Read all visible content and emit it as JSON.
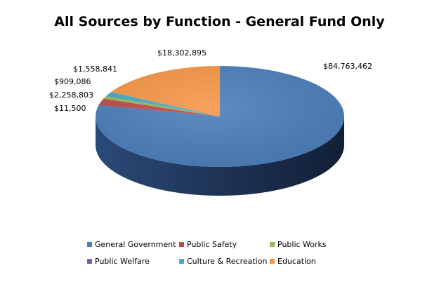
{
  "chart_data": {
    "type": "pie",
    "title": "All Sources by Function - General Fund Only",
    "categories": [
      "General Government",
      "Public Safety",
      "Public Works",
      "Public Welfare",
      "Culture & Recreation",
      "Education"
    ],
    "values": [
      84763462,
      2258803,
      909086,
      11500,
      1558841,
      18302895
    ],
    "value_labels": [
      "$84,763,462",
      "$2,258,803",
      "$909,086",
      "$11,500",
      "$1,558,841",
      "$18,302,895"
    ],
    "colors": [
      "#4a7ebb",
      "#be4b48",
      "#98b954",
      "#7d60a0",
      "#46aac5",
      "#f69546"
    ],
    "legend_position": "bottom",
    "style": "3d"
  }
}
